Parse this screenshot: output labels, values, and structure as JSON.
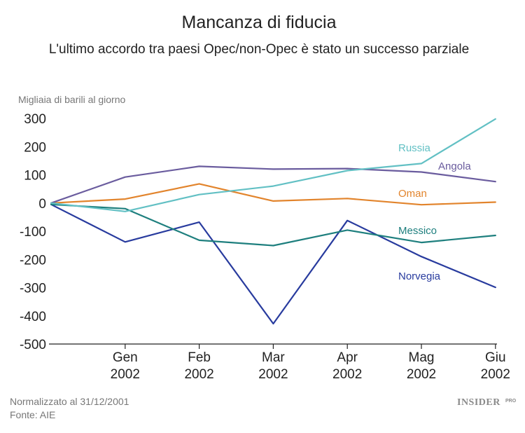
{
  "chart_data": {
    "type": "line",
    "title": "Mancanza di fiducia",
    "subtitle": "L'ultimo accordo tra paesi Opec/non-Opec è stato un successo parziale",
    "ylabel": "Migliaia di barili al giorno",
    "ylim": [
      -500,
      300
    ],
    "yticks": [
      "300",
      "200",
      "100",
      "0",
      "-100",
      "-200",
      "-300",
      "-400",
      "-500"
    ],
    "ytick_values": [
      300,
      200,
      100,
      0,
      -100,
      -200,
      -300,
      -400,
      -500
    ],
    "x": [
      "",
      "Gen 2002",
      "Feb 2002",
      "Mar 2002",
      "Apr 2002",
      "Mag 2002",
      "Giu 2002"
    ],
    "xticks": [
      {
        "line1": "Gen",
        "line2": "2002"
      },
      {
        "line1": "Feb",
        "line2": "2002"
      },
      {
        "line1": "Mar",
        "line2": "2002"
      },
      {
        "line1": "Apr",
        "line2": "2002"
      },
      {
        "line1": "Mag",
        "line2": "2002"
      },
      {
        "line1": "Giu",
        "line2": "2002"
      }
    ],
    "grid": false,
    "series": [
      {
        "name": "Russia",
        "color": "#62c0c4",
        "values": [
          0,
          -30,
          30,
          60,
          115,
          140,
          298
        ]
      },
      {
        "name": "Angola",
        "color": "#6a5c9e",
        "values": [
          0,
          92,
          130,
          120,
          122,
          110,
          76
        ]
      },
      {
        "name": "Oman",
        "color": "#e2842c",
        "values": [
          0,
          14,
          68,
          7,
          16,
          -6,
          3
        ]
      },
      {
        "name": "Messico",
        "color": "#1e7f7e",
        "values": [
          -5,
          -20,
          -132,
          -151,
          -96,
          -140,
          -115
        ]
      },
      {
        "name": "Norvegia",
        "color": "#283b9e",
        "values": [
          -5,
          -138,
          -68,
          -428,
          -62,
          -190,
          -299
        ]
      }
    ]
  },
  "notes": {
    "normalized": "Normalizzato al 31/12/2001",
    "source": "Fonte: AIE"
  },
  "logo": {
    "main": "INSIDER",
    "sub": "PRO"
  }
}
